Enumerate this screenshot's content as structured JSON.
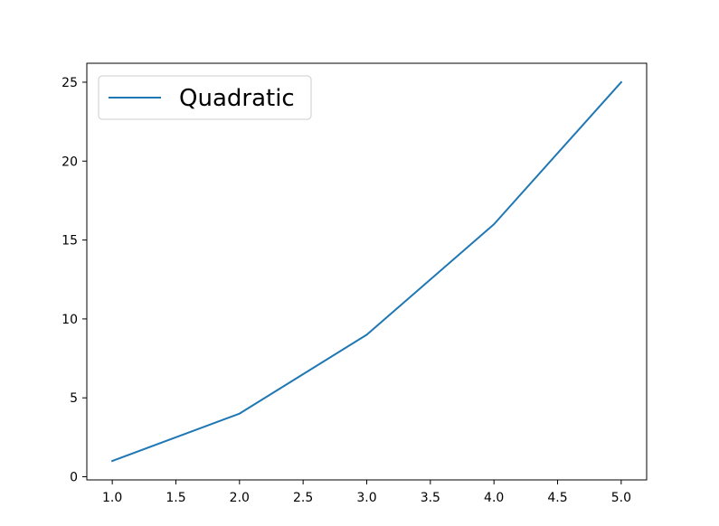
{
  "chart_data": {
    "type": "line",
    "title": "",
    "xlabel": "",
    "ylabel": "",
    "x": [
      1,
      2,
      3,
      4,
      5
    ],
    "series": [
      {
        "name": "Quadratic",
        "values": [
          1,
          4,
          9,
          16,
          25
        ],
        "color": "#1f77b4"
      }
    ],
    "xlim": [
      0.8,
      5.2
    ],
    "ylim": [
      -0.2,
      26.2
    ],
    "xticks": [
      1.0,
      1.5,
      2.0,
      2.5,
      3.0,
      3.5,
      4.0,
      4.5,
      5.0
    ],
    "xtick_labels": [
      "1.0",
      "1.5",
      "2.0",
      "2.5",
      "3.0",
      "3.5",
      "4.0",
      "4.5",
      "5.0"
    ],
    "yticks": [
      0,
      5,
      10,
      15,
      20,
      25
    ],
    "ytick_labels": [
      "0",
      "5",
      "10",
      "15",
      "20",
      "25"
    ],
    "grid": false,
    "legend_position": "top-left"
  }
}
